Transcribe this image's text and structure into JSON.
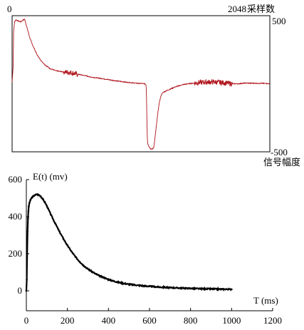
{
  "chart_data": [
    {
      "type": "line",
      "x_start_label": "0",
      "x_end_label": "2048",
      "x_title": "采样数",
      "y_top_label": "500",
      "y_bottom_label": "-500",
      "y_title": "信号幅度",
      "ylim": [
        -500,
        500
      ],
      "xlim": [
        0,
        2048
      ],
      "color": "#b0141c",
      "grid": false,
      "series": [
        {
          "x": [
            0,
            8,
            12,
            20,
            30,
            50,
            70,
            90,
            100,
            110,
            125,
            140,
            160,
            180,
            200,
            230,
            260,
            300,
            350,
            400,
            430,
            460,
            480,
            500,
            520,
            550,
            580,
            620,
            700,
            800,
            900,
            1000,
            1050,
            1060,
            1065,
            1068,
            1070,
            1072,
            1074,
            1076,
            1078,
            1080,
            1085,
            1090,
            1095,
            1100,
            1105,
            1110,
            1115,
            1120,
            1125,
            1130,
            1135,
            1140,
            1145,
            1150,
            1155,
            1160,
            1165,
            1170,
            1175,
            1180,
            1185,
            1190,
            1200,
            1220,
            1240,
            1260,
            1280,
            1300,
            1330,
            1360,
            1400,
            1450,
            1500,
            1550,
            1600,
            1650,
            1700,
            1750,
            1800,
            1850,
            1900,
            1950,
            2000,
            2048
          ],
          "y": [
            10,
            120,
            380,
            455,
            470,
            460,
            455,
            470,
            472,
            440,
            390,
            340,
            290,
            250,
            210,
            170,
            140,
            112,
            95,
            88,
            85,
            84,
            80,
            75,
            70,
            65,
            60,
            50,
            40,
            25,
            12,
            3,
            1,
            -3,
            -10,
            -100,
            -200,
            -300,
            -380,
            -420,
            -440,
            -445,
            -455,
            -465,
            -470,
            -478,
            -480,
            -480,
            -478,
            -475,
            -468,
            -440,
            -400,
            -360,
            -320,
            -280,
            -240,
            -200,
            -170,
            -140,
            -118,
            -100,
            -85,
            -75,
            -64,
            -54,
            -46,
            -38,
            -30,
            -22,
            -14,
            -6,
            0,
            5,
            10,
            12,
            13,
            10,
            5,
            0,
            0,
            5,
            4,
            3,
            3,
            0
          ]
        }
      ]
    },
    {
      "type": "line",
      "title": "E(t) (mv)",
      "xlabel": "T (ms)",
      "ylabel": "",
      "xlim": [
        0,
        1200
      ],
      "ylim": [
        -50,
        620
      ],
      "x_ticks": [
        "0",
        "200",
        "400",
        "600",
        "800",
        "1000",
        "1200"
      ],
      "y_ticks": [
        "0",
        "200",
        "400",
        "600"
      ],
      "color": "#000000",
      "grid": false,
      "series": [
        {
          "x": [
            0,
            2,
            4,
            6,
            8,
            10,
            12,
            15,
            20,
            25,
            30,
            40,
            50,
            60,
            70,
            80,
            90,
            100,
            120,
            140,
            160,
            180,
            200,
            220,
            240,
            260,
            280,
            300,
            320,
            340,
            360,
            380,
            400,
            420,
            440,
            460,
            480,
            500,
            550,
            600,
            650,
            700,
            750,
            800,
            850,
            900,
            950,
            1000
          ],
          "y": [
            0,
            60,
            200,
            320,
            390,
            430,
            455,
            475,
            490,
            500,
            507,
            515,
            520,
            518,
            510,
            495,
            478,
            458,
            410,
            365,
            322,
            282,
            245,
            212,
            182,
            157,
            135,
            118,
            103,
            90,
            79,
            70,
            61,
            54,
            48,
            43,
            39,
            35,
            29,
            24,
            20,
            17,
            15,
            13,
            11,
            10,
            9,
            8
          ]
        }
      ]
    }
  ]
}
